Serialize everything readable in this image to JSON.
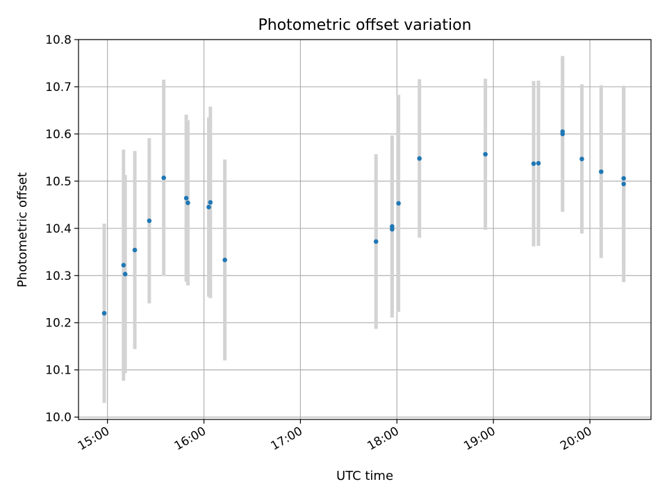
{
  "chart_data": {
    "type": "scatter",
    "title": "Photometric offset variation",
    "xlabel": "UTC time",
    "ylabel": "Photometric offset",
    "xlim": [
      "14:42",
      "20:38"
    ],
    "ylim": [
      9.995,
      10.8
    ],
    "x_ticks": [
      "15:00",
      "16:00",
      "17:00",
      "18:00",
      "19:00",
      "20:00"
    ],
    "y_ticks": [
      "10.0",
      "10.1",
      "10.2",
      "10.3",
      "10.4",
      "10.5",
      "10.6",
      "10.7",
      "10.8"
    ],
    "grid": true,
    "marker_color": "#1f77b4",
    "errorbar_color": "#d3d3d3",
    "points": [
      {
        "x": "14:58",
        "y": 10.22,
        "yerr": 0.19
      },
      {
        "x": "15:10",
        "y": 10.322,
        "yerr": 0.245
      },
      {
        "x": "15:11",
        "y": 10.303,
        "yerr": 0.21
      },
      {
        "x": "15:17",
        "y": 10.354,
        "yerr": 0.21
      },
      {
        "x": "15:26",
        "y": 10.416,
        "yerr": 0.175
      },
      {
        "x": "15:35",
        "y": 10.507,
        "yerr": 0.208
      },
      {
        "x": "15:49",
        "y": 10.464,
        "yerr": 0.177
      },
      {
        "x": "15:50",
        "y": 10.454,
        "yerr": 0.175
      },
      {
        "x": "16:03",
        "y": 10.445,
        "yerr": 0.19
      },
      {
        "x": "16:04",
        "y": 10.455,
        "yerr": 0.203
      },
      {
        "x": "16:13",
        "y": 10.333,
        "yerr": 0.213
      },
      {
        "x": "17:47",
        "y": 10.372,
        "yerr": 0.185
      },
      {
        "x": "17:57",
        "y": 10.398,
        "yerr": 0.18
      },
      {
        "x": "17:57",
        "y": 10.404,
        "yerr": 0.193
      },
      {
        "x": "18:01",
        "y": 10.453,
        "yerr": 0.23
      },
      {
        "x": "18:14",
        "y": 10.548,
        "yerr": 0.168
      },
      {
        "x": "18:55",
        "y": 10.557,
        "yerr": 0.16
      },
      {
        "x": "19:25",
        "y": 10.537,
        "yerr": 0.175
      },
      {
        "x": "19:28",
        "y": 10.538,
        "yerr": 0.175
      },
      {
        "x": "19:43",
        "y": 10.6,
        "yerr": 0.165
      },
      {
        "x": "19:43",
        "y": 10.605,
        "yerr": 0.16
      },
      {
        "x": "19:55",
        "y": 10.547,
        "yerr": 0.158
      },
      {
        "x": "20:07",
        "y": 10.52,
        "yerr": 0.183
      },
      {
        "x": "20:21",
        "y": 10.494,
        "yerr": 0.208
      },
      {
        "x": "20:21",
        "y": 10.506,
        "yerr": 0.195
      }
    ]
  }
}
